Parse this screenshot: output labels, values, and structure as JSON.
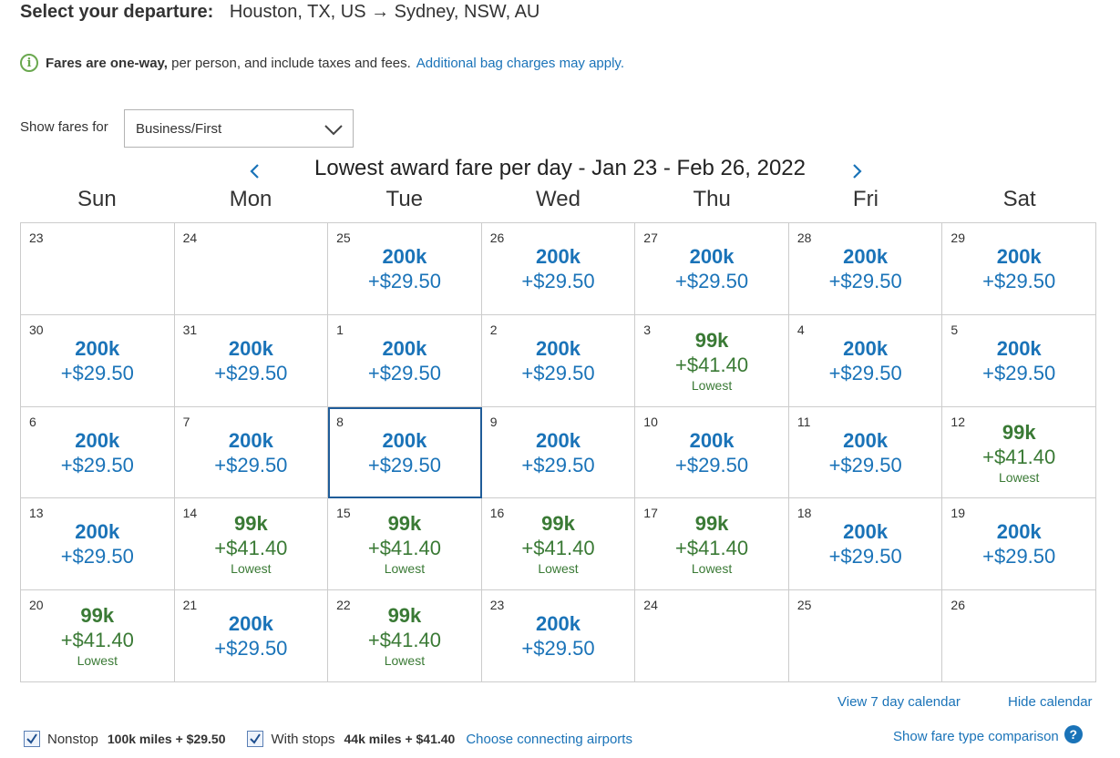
{
  "header": {
    "label": "Select your departure:",
    "route": "Houston, TX, US → Sydney, NSW, AU"
  },
  "info": {
    "icon": "info-icon",
    "bold": "Fares are one-way,",
    "text": " per person, and include taxes and fees.",
    "link": "Additional bag charges may apply."
  },
  "fare_filter": {
    "label": "Show fares for",
    "selected": "Business/First"
  },
  "calendar": {
    "title": "Lowest award fare per day - Jan 23 - Feb 26, 2022",
    "days_of_week": [
      "Sun",
      "Mon",
      "Tue",
      "Wed",
      "Thu",
      "Fri",
      "Sat"
    ],
    "lowest_label": "Lowest",
    "selected_index": 16,
    "colors": {
      "standard": "#1a73b8",
      "lowest": "#3a7a35",
      "selected_border": "#1f5c99"
    },
    "cells": [
      {
        "day": "23"
      },
      {
        "day": "24"
      },
      {
        "day": "25",
        "miles": "200k",
        "tax": "+$29.50"
      },
      {
        "day": "26",
        "miles": "200k",
        "tax": "+$29.50"
      },
      {
        "day": "27",
        "miles": "200k",
        "tax": "+$29.50"
      },
      {
        "day": "28",
        "miles": "200k",
        "tax": "+$29.50"
      },
      {
        "day": "29",
        "miles": "200k",
        "tax": "+$29.50"
      },
      {
        "day": "30",
        "miles": "200k",
        "tax": "+$29.50"
      },
      {
        "day": "31",
        "miles": "200k",
        "tax": "+$29.50"
      },
      {
        "day": "1",
        "miles": "200k",
        "tax": "+$29.50"
      },
      {
        "day": "2",
        "miles": "200k",
        "tax": "+$29.50"
      },
      {
        "day": "3",
        "miles": "99k",
        "tax": "+$41.40",
        "lowest": true
      },
      {
        "day": "4",
        "miles": "200k",
        "tax": "+$29.50"
      },
      {
        "day": "5",
        "miles": "200k",
        "tax": "+$29.50"
      },
      {
        "day": "6",
        "miles": "200k",
        "tax": "+$29.50"
      },
      {
        "day": "7",
        "miles": "200k",
        "tax": "+$29.50"
      },
      {
        "day": "8",
        "miles": "200k",
        "tax": "+$29.50"
      },
      {
        "day": "9",
        "miles": "200k",
        "tax": "+$29.50"
      },
      {
        "day": "10",
        "miles": "200k",
        "tax": "+$29.50"
      },
      {
        "day": "11",
        "miles": "200k",
        "tax": "+$29.50"
      },
      {
        "day": "12",
        "miles": "99k",
        "tax": "+$41.40",
        "lowest": true
      },
      {
        "day": "13",
        "miles": "200k",
        "tax": "+$29.50"
      },
      {
        "day": "14",
        "miles": "99k",
        "tax": "+$41.40",
        "lowest": true
      },
      {
        "day": "15",
        "miles": "99k",
        "tax": "+$41.40",
        "lowest": true
      },
      {
        "day": "16",
        "miles": "99k",
        "tax": "+$41.40",
        "lowest": true
      },
      {
        "day": "17",
        "miles": "99k",
        "tax": "+$41.40",
        "lowest": true
      },
      {
        "day": "18",
        "miles": "200k",
        "tax": "+$29.50"
      },
      {
        "day": "19",
        "miles": "200k",
        "tax": "+$29.50"
      },
      {
        "day": "20",
        "miles": "99k",
        "tax": "+$41.40",
        "lowest": true
      },
      {
        "day": "21",
        "miles": "200k",
        "tax": "+$29.50"
      },
      {
        "day": "22",
        "miles": "99k",
        "tax": "+$41.40",
        "lowest": true
      },
      {
        "day": "23",
        "miles": "200k",
        "tax": "+$29.50"
      },
      {
        "day": "24"
      },
      {
        "day": "25"
      },
      {
        "day": "26"
      }
    ]
  },
  "actions": {
    "view_7day": "View 7 day calendar",
    "hide_calendar": "Hide calendar"
  },
  "filters": {
    "nonstop": {
      "label": "Nonstop",
      "price": "100k miles + $29.50",
      "checked": true
    },
    "with_stops": {
      "label": "With stops",
      "price": "44k miles + $41.40",
      "checked": true
    },
    "connecting_link": "Choose connecting airports"
  },
  "compare": {
    "label": "Show fare type comparison",
    "icon": "help-icon"
  }
}
